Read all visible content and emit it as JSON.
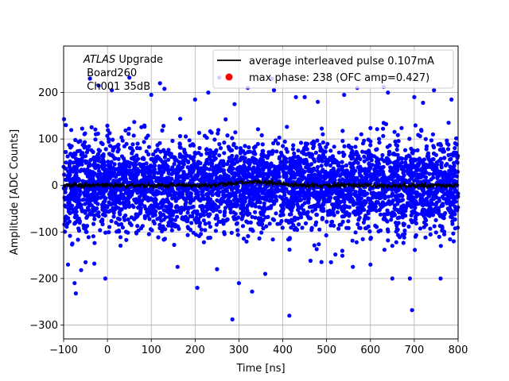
{
  "chart_data": {
    "type": "scatter",
    "title": "",
    "xlabel": "Time [ns]",
    "ylabel": "Amplitude [ADC Counts]",
    "xlim": [
      -100,
      800
    ],
    "ylim": [
      -330,
      300
    ],
    "xticks": [
      -100,
      0,
      100,
      200,
      300,
      400,
      500,
      600,
      700,
      800
    ],
    "yticks": [
      -300,
      -200,
      -100,
      0,
      100,
      200
    ],
    "grid": true,
    "legend_position": "top-right",
    "annotation": {
      "italic": "ATLAS",
      "rest": " Upgrade",
      "line2": " Board260",
      "line3": " Ch001 35dB"
    },
    "series": [
      {
        "name": "average interleaved pulse 0.107mA",
        "kind": "line",
        "color": "#000000",
        "x_range": [
          -100,
          800
        ],
        "values_summary": {
          "mean": 0,
          "min": -10,
          "max": 14,
          "peak_x": 340
        }
      },
      {
        "name": "max phase: 238 (OFC amp=0.427)",
        "kind": "marker",
        "color": "#ff0000",
        "points": []
      },
      {
        "name": "samples",
        "kind": "scatter",
        "color": "#0000ff",
        "x_range": [
          -100,
          800
        ],
        "dense_band": [
          -110,
          110
        ],
        "outliers": [
          [
            -90,
            -170
          ],
          [
            -75,
            -210
          ],
          [
            -72,
            -232
          ],
          [
            -60,
            -182
          ],
          [
            -50,
            -165
          ],
          [
            -30,
            -168
          ],
          [
            -5,
            -200
          ],
          [
            -40,
            230
          ],
          [
            -20,
            215
          ],
          [
            10,
            205
          ],
          [
            50,
            232
          ],
          [
            120,
            220
          ],
          [
            130,
            208
          ],
          [
            200,
            185
          ],
          [
            205,
            -220
          ],
          [
            230,
            200
          ],
          [
            255,
            232
          ],
          [
            285,
            -288
          ],
          [
            290,
            175
          ],
          [
            300,
            -210
          ],
          [
            320,
            210
          ],
          [
            330,
            -228
          ],
          [
            375,
            230
          ],
          [
            380,
            205
          ],
          [
            415,
            -280
          ],
          [
            450,
            190
          ],
          [
            480,
            180
          ],
          [
            540,
            195
          ],
          [
            570,
            210
          ],
          [
            600,
            -170
          ],
          [
            630,
            212
          ],
          [
            640,
            200
          ],
          [
            650,
            -200
          ],
          [
            690,
            -200
          ],
          [
            695,
            -268
          ],
          [
            720,
            178
          ],
          [
            745,
            205
          ],
          [
            760,
            -200
          ],
          [
            785,
            185
          ],
          [
            790,
            -120
          ],
          [
            -95,
            130
          ],
          [
            -80,
            -125
          ],
          [
            100,
            195
          ],
          [
            160,
            -175
          ],
          [
            250,
            -180
          ],
          [
            360,
            -190
          ],
          [
            430,
            190
          ],
          [
            510,
            -165
          ],
          [
            560,
            -175
          ],
          [
            700,
            190
          ]
        ]
      }
    ]
  }
}
